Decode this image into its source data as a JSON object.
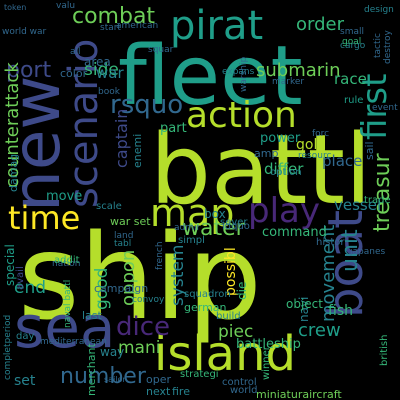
{
  "palette": {
    "purple": "#440154",
    "indigo": "#482878",
    "blue": "#3e4a89",
    "slate": "#31688e",
    "teal": "#26828e",
    "cyan": "#1f9e89",
    "green": "#35b779",
    "lime": "#6ece58",
    "yellowgreen": "#b5de2b",
    "yellow": "#fde725"
  },
  "words": [
    {
      "text": "ship",
      "color": "yellowgreen"
    },
    {
      "text": "battl",
      "color": "yellowgreen"
    },
    {
      "text": "fleet",
      "color": "cyan"
    },
    {
      "text": "new",
      "color": "blue"
    },
    {
      "text": "sea",
      "color": "blue"
    },
    {
      "text": "island",
      "color": "yellowgreen"
    },
    {
      "text": "boat",
      "color": "blue"
    },
    {
      "text": "pirat",
      "color": "cyan"
    },
    {
      "text": "scenario",
      "color": "blue"
    },
    {
      "text": "action",
      "color": "yellowgreen"
    },
    {
      "text": "map",
      "color": "yellowgreen"
    },
    {
      "text": "play",
      "color": "indigo"
    },
    {
      "text": "time",
      "color": "yellow"
    },
    {
      "text": "first",
      "color": "cyan"
    },
    {
      "text": "rsquo",
      "color": "slate"
    },
    {
      "text": "combat",
      "color": "lime"
    },
    {
      "text": "port",
      "color": "blue"
    },
    {
      "text": "counterattack",
      "color": "lime"
    },
    {
      "text": "treasur",
      "color": "lime"
    },
    {
      "text": "dice",
      "color": "indigo"
    },
    {
      "text": "number",
      "color": "slate"
    },
    {
      "text": "water",
      "color": "lime"
    },
    {
      "text": "captain",
      "color": "blue"
    },
    {
      "text": "submarin",
      "color": "lime"
    },
    {
      "text": "order",
      "color": "green"
    },
    {
      "text": "unit",
      "color": "teal"
    },
    {
      "text": "movement",
      "color": "teal"
    },
    {
      "text": "system",
      "color": "teal"
    },
    {
      "text": "crew",
      "color": "cyan"
    },
    {
      "text": "oppon",
      "color": "lime"
    },
    {
      "text": "mani",
      "color": "lime"
    },
    {
      "text": "piec",
      "color": "lime"
    },
    {
      "text": "end",
      "color": "cyan"
    },
    {
      "text": "good",
      "color": "green"
    },
    {
      "text": "side",
      "color": "green"
    },
    {
      "text": "war",
      "color": "teal"
    },
    {
      "text": "differ",
      "color": "green"
    },
    {
      "text": "gold",
      "color": "yellowgreen"
    },
    {
      "text": "race",
      "color": "green"
    },
    {
      "text": "vessel",
      "color": "teal"
    },
    {
      "text": "place",
      "color": "slate"
    },
    {
      "text": "possibl",
      "color": "yellow"
    },
    {
      "text": "battleship",
      "color": "green"
    },
    {
      "text": "command",
      "color": "green"
    },
    {
      "text": "set",
      "color": "teal"
    },
    {
      "text": "fish",
      "color": "green"
    },
    {
      "text": "campaign",
      "color": "slate"
    },
    {
      "text": "nation",
      "color": "slate"
    },
    {
      "text": "navi",
      "color": "teal"
    },
    {
      "text": "sail",
      "color": "slate"
    },
    {
      "text": "box",
      "color": "teal"
    },
    {
      "text": "trade",
      "color": "green"
    },
    {
      "text": "object",
      "color": "green"
    },
    {
      "text": "miniaturaircraft",
      "color": "lime"
    },
    {
      "text": "strategi",
      "color": "green"
    },
    {
      "text": "special",
      "color": "cyan"
    },
    {
      "text": "avail",
      "color": "blue"
    },
    {
      "text": "damag",
      "color": "teal"
    },
    {
      "text": "move",
      "color": "cyan"
    },
    {
      "text": "scale",
      "color": "teal"
    },
    {
      "text": "area",
      "color": "slate"
    },
    {
      "text": "color",
      "color": "slate"
    },
    {
      "text": "part",
      "color": "green"
    },
    {
      "text": "enemi",
      "color": "teal"
    },
    {
      "text": "power",
      "color": "cyan"
    },
    {
      "text": "amp",
      "color": "slate"
    },
    {
      "text": "option",
      "color": "teal"
    },
    {
      "text": "die",
      "color": "green"
    },
    {
      "text": "histor",
      "color": "slate"
    },
    {
      "text": "german",
      "color": "green"
    },
    {
      "text": "squadron",
      "color": "teal"
    },
    {
      "text": "french",
      "color": "slate"
    },
    {
      "text": "japanes",
      "color": "slate"
    },
    {
      "text": "merchant",
      "color": "green"
    },
    {
      "text": "way",
      "color": "teal"
    },
    {
      "text": "build",
      "color": "teal"
    },
    {
      "text": "control",
      "color": "slate"
    },
    {
      "text": "world",
      "color": "slate"
    },
    {
      "text": "next",
      "color": "teal"
    },
    {
      "text": "fire",
      "color": "teal"
    },
    {
      "text": "oper",
      "color": "slate"
    },
    {
      "text": "last",
      "color": "teal"
    },
    {
      "text": "day",
      "color": "teal"
    },
    {
      "text": "mediterranean",
      "color": "slate"
    },
    {
      "text": "sailor",
      "color": "slate"
    },
    {
      "text": "winner",
      "color": "green"
    },
    {
      "text": "british",
      "color": "green"
    },
    {
      "text": "completperiod",
      "color": "teal"
    },
    {
      "text": "addit",
      "color": "green"
    },
    {
      "text": "war set",
      "color": "lime"
    },
    {
      "text": "naval battl",
      "color": "green"
    },
    {
      "text": "american",
      "color": "slate"
    },
    {
      "text": "expans",
      "color": "teal"
    },
    {
      "text": "warship",
      "color": "slate"
    },
    {
      "text": "rule",
      "color": "cyan"
    },
    {
      "text": "tactic",
      "color": "slate"
    },
    {
      "text": "small",
      "color": "slate"
    },
    {
      "text": "cargo",
      "color": "teal"
    },
    {
      "text": "goal",
      "color": "green"
    },
    {
      "text": "design",
      "color": "teal"
    },
    {
      "text": "destroy",
      "color": "slate"
    },
    {
      "text": "event",
      "color": "slate"
    },
    {
      "text": "marker",
      "color": "slate"
    },
    {
      "text": "token",
      "color": "slate"
    },
    {
      "text": "book",
      "color": "slate"
    },
    {
      "text": "start",
      "color": "slate"
    },
    {
      "text": "tabl",
      "color": "teal"
    },
    {
      "text": "land",
      "color": "slate"
    },
    {
      "text": "simpl",
      "color": "teal"
    },
    {
      "text": "sever",
      "color": "teal"
    },
    {
      "text": "convoy",
      "color": "teal"
    },
    {
      "text": "idquo",
      "color": "slate"
    },
    {
      "text": "admir",
      "color": "slate"
    },
    {
      "text": "world war",
      "color": "slate"
    },
    {
      "text": "valu",
      "color": "slate"
    },
    {
      "text": "forc",
      "color": "slate"
    },
    {
      "text": "resourc",
      "color": "teal"
    },
    {
      "text": "squar",
      "color": "slate"
    },
    {
      "text": "all",
      "color": "slate"
    }
  ]
}
